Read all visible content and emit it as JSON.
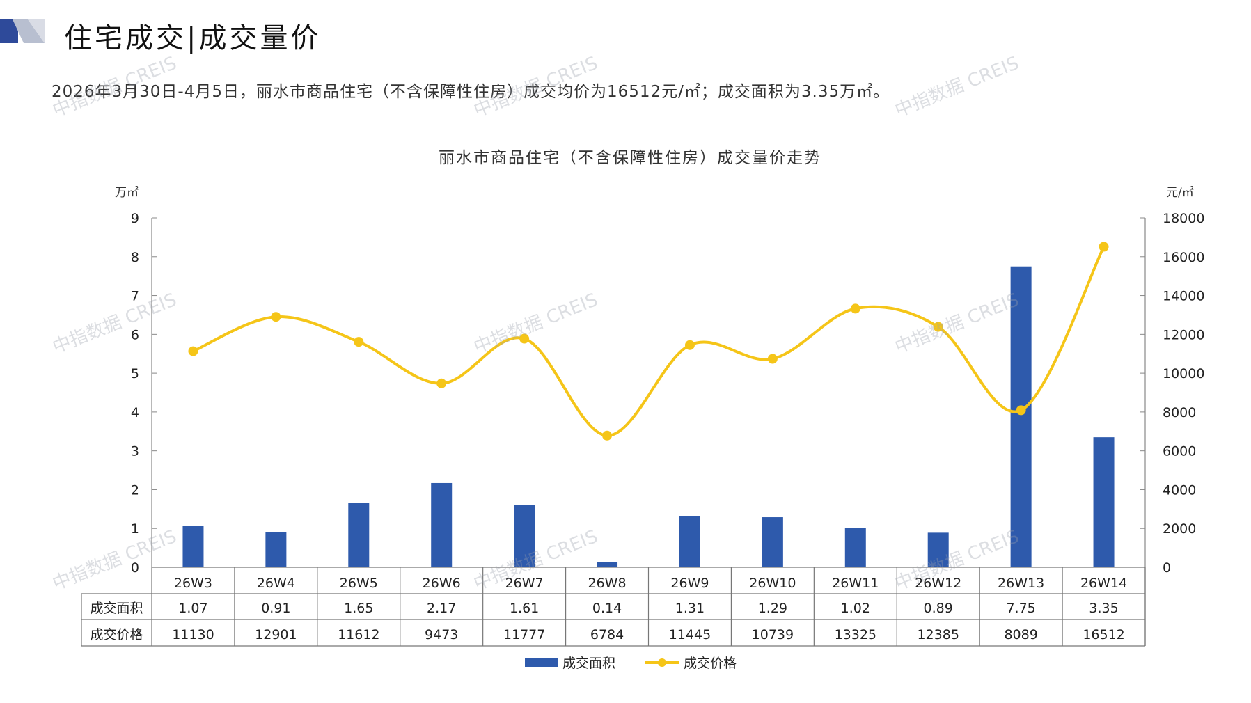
{
  "header": {
    "title": "住宅成交|成交量价",
    "summary": "2026年3月30日-4月5日，丽水市商品住宅（不含保障性住房）成交均价为16512元/㎡；成交面积为3.35万㎡。"
  },
  "watermark_text": "中指数据 CREIS",
  "colors": {
    "bar": "#2E5AAC",
    "line": "#F5C518",
    "axis": "#888888",
    "logo_dark": "#2E4A9A",
    "logo_light": "#B8BFD0"
  },
  "chart_data": {
    "type": "bar",
    "title": "丽水市商品住宅（不含保障性住房）成交量价走势",
    "y_left_unit": "万㎡",
    "y_right_unit": "元/㎡",
    "ylim_left": [
      0,
      9
    ],
    "ylim_right": [
      0,
      18000
    ],
    "yticks_left": [
      0,
      1,
      2,
      3,
      4,
      5,
      6,
      7,
      8,
      9
    ],
    "yticks_right": [
      0,
      2000,
      4000,
      6000,
      8000,
      10000,
      12000,
      14000,
      16000,
      18000
    ],
    "categories": [
      "26W3",
      "26W4",
      "26W5",
      "26W6",
      "26W7",
      "26W8",
      "26W9",
      "26W10",
      "26W11",
      "26W12",
      "26W13",
      "26W14"
    ],
    "series": [
      {
        "name": "成交面积",
        "type": "bar",
        "axis": "left",
        "values": [
          1.07,
          0.91,
          1.65,
          2.17,
          1.61,
          0.14,
          1.31,
          1.29,
          1.02,
          0.89,
          7.75,
          3.35
        ],
        "labels": [
          "1.07",
          "0.91",
          "1.65",
          "2.17",
          "1.61",
          "0.14",
          "1.31",
          "1.29",
          "1.02",
          "0.89",
          "7.75",
          "3.35"
        ]
      },
      {
        "name": "成交价格",
        "type": "line",
        "axis": "right",
        "values": [
          11130,
          12901,
          11612,
          9473,
          11777,
          6784,
          11445,
          10739,
          13325,
          12385,
          8089,
          16512
        ],
        "labels": [
          "11130",
          "12901",
          "11612",
          "9473",
          "11777",
          "6784",
          "11445",
          "10739",
          "13325",
          "12385",
          "8089",
          "16512"
        ]
      }
    ],
    "legend_position": "bottom",
    "grid": false,
    "data_table": true
  }
}
